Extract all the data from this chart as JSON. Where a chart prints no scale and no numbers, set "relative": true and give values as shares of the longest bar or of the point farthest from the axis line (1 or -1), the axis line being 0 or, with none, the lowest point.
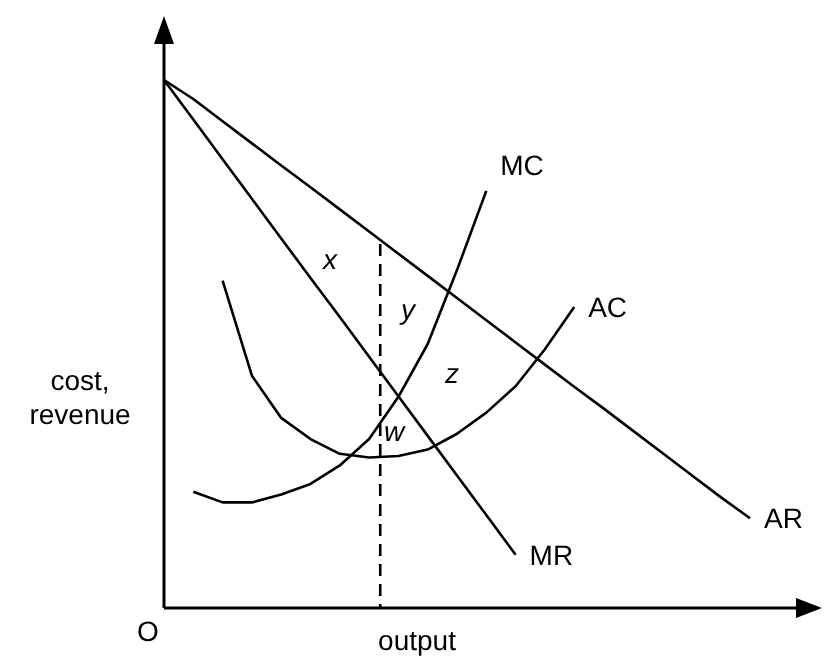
{
  "chart_data": {
    "type": "line",
    "relative": true,
    "xlabel": "output",
    "ylabel": "cost,\nrevenue",
    "categories": [
      null,
      null,
      null,
      null,
      null,
      null,
      null,
      null,
      null,
      null,
      null,
      null,
      null,
      null,
      null,
      null,
      null,
      null,
      null,
      null,
      null
    ],
    "series": [
      {
        "name": "AR",
        "color": "#000000",
        "values": [
          1,
          0.964,
          0.922,
          0.88,
          0.838,
          0.797,
          0.755,
          0.713,
          0.671,
          0.629,
          0.587,
          0.545,
          0.503,
          0.461,
          0.419,
          0.378,
          0.336,
          0.294,
          0.252,
          0.21,
          0.17
        ]
      },
      {
        "name": "MR",
        "color": "#000000",
        "values": [
          1,
          0.925,
          0.85,
          0.775,
          0.7,
          0.625,
          0.551,
          0.476,
          0.401,
          0.326,
          0.251,
          0.176,
          0.101,
          null,
          null,
          null,
          null,
          null,
          null,
          null,
          null
        ]
      },
      {
        "name": "MC",
        "color": "#000000",
        "values": [
          null,
          0.22,
          0.2,
          0.2,
          0.215,
          0.235,
          0.27,
          0.32,
          0.4,
          0.5,
          0.64,
          0.79,
          null,
          null,
          null,
          null,
          null,
          null,
          null,
          null,
          null
        ]
      },
      {
        "name": "AC",
        "color": "#000000",
        "values": [
          null,
          null,
          0.62,
          0.44,
          0.36,
          0.32,
          0.292,
          0.285,
          0.288,
          0.3,
          0.33,
          0.37,
          0.42,
          0.49,
          0.57,
          null,
          null,
          null,
          null,
          null,
          null
        ]
      }
    ],
    "annotations": [
      "x",
      "y",
      "z",
      "w",
      "O"
    ]
  }
}
